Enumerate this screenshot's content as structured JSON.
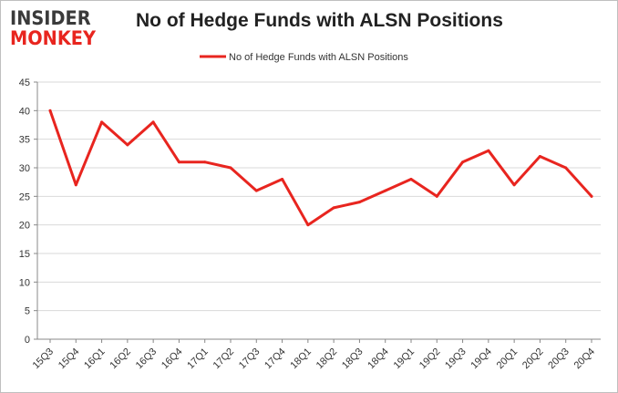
{
  "logo": {
    "line1": "INSIDER",
    "line2": "MONKEY"
  },
  "colors": {
    "series": "#e8251f",
    "grid": "#d9d9d9",
    "axis": "#888888",
    "logo_dark": "#3a3a3a",
    "logo_red": "#e8251f"
  },
  "chart_data": {
    "type": "line",
    "title": "No of Hedge Funds with ALSN Positions",
    "xlabel": "",
    "ylabel": "",
    "ylim": [
      0,
      45
    ],
    "yticks": [
      0,
      5,
      10,
      15,
      20,
      25,
      30,
      35,
      40,
      45
    ],
    "grid": true,
    "legend_position": "top-center",
    "categories": [
      "15Q3",
      "15Q4",
      "16Q1",
      "16Q2",
      "16Q3",
      "16Q4",
      "17Q1",
      "17Q2",
      "17Q3",
      "17Q4",
      "18Q1",
      "18Q2",
      "18Q3",
      "18Q4",
      "19Q1",
      "19Q2",
      "19Q3",
      "19Q4",
      "20Q1",
      "20Q2",
      "20Q3",
      "20Q4"
    ],
    "series": [
      {
        "name": "No of Hedge Funds with ALSN Positions",
        "values": [
          40,
          27,
          38,
          34,
          38,
          31,
          31,
          30,
          26,
          28,
          20,
          23,
          24,
          26,
          28,
          25,
          31,
          33,
          27,
          32,
          30,
          25
        ]
      }
    ]
  }
}
